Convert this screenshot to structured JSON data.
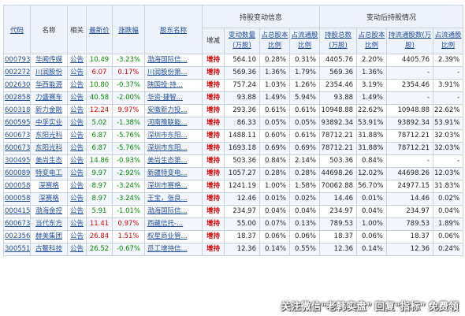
{
  "header": {
    "code": "代码",
    "name": "名称",
    "related": "相关",
    "price": "最新价",
    "change": "涨跌幅",
    "holder": "股东名称",
    "group_change": "持股变动信息",
    "group_after": "变动后持股情况",
    "direction": "增减",
    "chg_qty": "变动数量(万股)",
    "chg_total_pct": "占总股本比例",
    "chg_float_pct": "占流通股比例",
    "after_total": "持股总数(万股)",
    "after_total_pct": "占总股本比例",
    "after_float": "持流通股数(万股)",
    "after_float_pct": "占流通股比例"
  },
  "rows": [
    {
      "code": "000793",
      "name": "华闻传媒",
      "ann": "公告",
      "price": "10.49",
      "chg": "-3.23%",
      "holder": "渤海国际信...",
      "dir": "增持",
      "qty": "564.10",
      "pct1": "0.28%",
      "pct2": "0.31%",
      "total": "4405.76",
      "pct3": "2.20%",
      "float": "4405.76",
      "pct4": "2.39%"
    },
    {
      "code": "002272",
      "name": "川润股份",
      "ann": "公告",
      "price": "6.07",
      "chg": "0.17%",
      "holder": "川润股份第...",
      "dir": "增持",
      "qty": "569.36",
      "pct1": "1.36%",
      "pct2": "1.79%",
      "total": "569.36",
      "pct3": "1.36%",
      "float": "-",
      "pct4": "-"
    },
    {
      "code": "002630",
      "name": "华西能源",
      "ann": "公告",
      "price": "10.80",
      "chg": "-0.37%",
      "holder": "陕国投·持...",
      "dir": "增持",
      "qty": "757.24",
      "pct1": "1.03%",
      "pct2": "1.26%",
      "total": "2354.46",
      "pct3": "3.19%",
      "float": "2354.46",
      "pct4": "3.91%"
    },
    {
      "code": "002858",
      "name": "力盛赛车",
      "ann": "公告",
      "price": "40.58",
      "chg": "-2.00%",
      "holder": "华资·捷智...",
      "dir": "增持",
      "qty": "93.88",
      "pct1": "1.49%",
      "pct2": "5.94%",
      "total": "93.88",
      "pct3": "1.49%",
      "float": "-",
      "pct4": "-"
    },
    {
      "code": "600318",
      "name": "新力金融",
      "ann": "公告",
      "price": "12.24",
      "chg": "9.97%",
      "holder": "安徽新力投...",
      "dir": "增持",
      "qty": "293.36",
      "pct1": "0.61%",
      "pct2": "0.61%",
      "total": "10948.88",
      "pct3": "22.62%",
      "float": "10948.88",
      "pct4": "22.62%"
    },
    {
      "code": "600595",
      "name": "中孚实业",
      "ann": "公告",
      "price": "5.02",
      "chg": "-1.38%",
      "holder": "河南豫联能...",
      "dir": "增持",
      "qty": "86.33",
      "pct1": "0.05%",
      "pct2": "0.05%",
      "total": "93892.34",
      "pct3": "53.91%",
      "float": "93892.34",
      "pct4": "53.91%"
    },
    {
      "code": "600673",
      "name": "东阳光科",
      "ann": "公告",
      "price": "6.87",
      "chg": "-5.76%",
      "holder": "深圳市东阳...",
      "dir": "增持",
      "qty": "1488.11",
      "pct1": "0.60%",
      "pct2": "0.61%",
      "total": "78712.21",
      "pct3": "31.88%",
      "float": "78712.21",
      "pct4": "32.03%"
    },
    {
      "code": "600673",
      "name": "东阳光科",
      "ann": "公告",
      "price": "6.87",
      "chg": "-5.76%",
      "holder": "深圳市东阳...",
      "dir": "增持",
      "qty": "1693.18",
      "pct1": "0.69%",
      "pct2": "0.69%",
      "total": "78712.21",
      "pct3": "31.88%",
      "float": "78712.21",
      "pct4": "32.03%"
    },
    {
      "code": "300495",
      "name": "美尚生态",
      "ann": "公告",
      "price": "14.86",
      "chg": "-0.93%",
      "holder": "美尚生态第...",
      "dir": "增持",
      "qty": "503.36",
      "pct1": "0.84%",
      "pct2": "2.14%",
      "total": "503.36",
      "pct3": "0.84%",
      "float": "-",
      "pct4": "-"
    },
    {
      "code": "600089",
      "name": "特变电工",
      "ann": "公告",
      "price": "9.97",
      "chg": "-2.92%",
      "holder": "新疆特变电...",
      "dir": "增持",
      "qty": "1057.27",
      "pct1": "0.28%",
      "pct2": "0.28%",
      "total": "44698.26",
      "pct3": "12.02%",
      "float": "44698.26",
      "pct4": "12.03%"
    },
    {
      "code": "000058",
      "name": "深赛格",
      "ann": "公告",
      "price": "8.97",
      "chg": "-3.24%",
      "holder": "深圳市赛格...",
      "dir": "增持",
      "qty": "1241.19",
      "pct1": "1.00%",
      "pct2": "1.58%",
      "total": "70062.88",
      "pct3": "56.70%",
      "float": "24977.15",
      "pct4": "31.83%"
    },
    {
      "code": "000058",
      "name": "深赛格",
      "ann": "公告",
      "price": "8.97",
      "chg": "-3.24%",
      "holder": "王宝，张良...",
      "dir": "增持",
      "qty": "12.46",
      "pct1": "0.01%",
      "pct2": "0.02%",
      "total": "14.46",
      "pct3": "0.01%",
      "float": "14.46",
      "pct4": "0.02%"
    },
    {
      "code": "000415",
      "name": "渤海金控",
      "ann": "公告",
      "price": "5.91",
      "chg": "-1.01%",
      "holder": "渤海国际信...",
      "dir": "增持",
      "qty": "234.97",
      "pct1": "0.04%",
      "pct2": "0.04%",
      "total": "234.97",
      "pct3": "0.04%",
      "float": "234.97",
      "pct4": "0.04%"
    },
    {
      "code": "600673",
      "name": "当代东方",
      "ann": "公告",
      "price": "11.41",
      "chg": "0.97%",
      "holder": "西藏信托-...",
      "dir": "增持",
      "qty": "55.00",
      "pct1": "0.07%",
      "pct2": "0.13%",
      "total": "789.53",
      "pct3": "1.00%",
      "float": "789.53",
      "pct4": "1.89%"
    },
    {
      "code": "002356",
      "name": "赫美集团",
      "ann": "公告",
      "price": "26.84",
      "chg": "1.51%",
      "holder": "权星商业管...",
      "dir": "增持",
      "qty": "18.37",
      "pct1": "0.06%",
      "pct2": "0.06%",
      "total": "18.37",
      "pct3": "0.06%",
      "float": "18.37",
      "pct4": "0.06%"
    },
    {
      "code": "300551",
      "name": "古鳌科技",
      "ann": "公告",
      "price": "26.52",
      "chg": "-0.67%",
      "holder": "员工增持信...",
      "dir": "增持",
      "qty": "12.36",
      "pct1": "0.14%",
      "pct2": "0.55%",
      "total": "12.36",
      "pct3": "0.14%",
      "float": "12.36",
      "pct4": "0.24%"
    }
  ],
  "watermark": "关注微信“老韩实盘”  回复“指标”  免费领"
}
